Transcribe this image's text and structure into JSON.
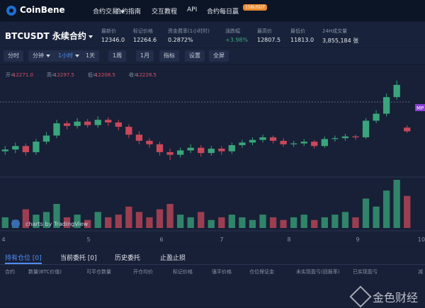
{
  "nav": {
    "logo": "CoinBene",
    "items": [
      "合约交易",
      "合约指南",
      "交互教程",
      "API",
      "合约每日赢"
    ],
    "badge": "15BUSDT"
  },
  "ticker": {
    "symbol": "BTCUSDT 永续合约",
    "stats": [
      {
        "label": "最新价",
        "value": "12346.0"
      },
      {
        "label": "标记价格",
        "value": "12264.6"
      },
      {
        "label": "资金费率(1小时时)",
        "value": "0.2872%"
      },
      {
        "label": "涨跌幅",
        "value": "+3.98%"
      },
      {
        "label": "最高价",
        "value": "12807.5"
      },
      {
        "label": "最低价",
        "value": "11813.0"
      },
      {
        "label": "24H成交量",
        "value": "3,855,184 张"
      }
    ]
  },
  "toolbar": [
    "分时",
    "分钟",
    "1小时",
    "1天",
    "1周",
    "1月",
    "指标",
    "设置",
    "全屏"
  ],
  "chart_data": {
    "type": "candlestick",
    "legend": [
      {
        "label": "开=",
        "value": "12271.0"
      },
      {
        "label": "高=",
        "value": "12297.5"
      },
      {
        "label": "低=",
        "value": "12208.5"
      },
      {
        "label": "收=",
        "value": "12228.5"
      }
    ],
    "x_labels": [
      "4",
      "5",
      "6",
      "7",
      "8",
      "9",
      "10"
    ],
    "open": [
      12000,
      12020,
      12060,
      11990,
      12110,
      12180,
      12320,
      12290,
      12340,
      12300,
      12360,
      12330,
      12280,
      12190,
      12120,
      12080,
      11990,
      11960,
      12010,
      12040,
      11980,
      12030,
      12000,
      12070,
      12100,
      12130,
      12160,
      12120,
      12080,
      12090,
      12110,
      12060,
      12140,
      12150,
      12170,
      12160,
      12350,
      12430,
      12620,
      12271
    ],
    "high": [
      12060,
      12100,
      12090,
      12140,
      12220,
      12360,
      12350,
      12380,
      12370,
      12400,
      12390,
      12360,
      12310,
      12230,
      12150,
      12110,
      12030,
      12040,
      12080,
      12070,
      12060,
      12060,
      12100,
      12130,
      12160,
      12190,
      12180,
      12150,
      12120,
      12140,
      12130,
      12170,
      12180,
      12200,
      12190,
      12380,
      12470,
      12660,
      12807.5,
      12297.5
    ],
    "low": [
      11960,
      11980,
      11950,
      11960,
      12080,
      12150,
      12250,
      12260,
      12270,
      12270,
      12290,
      12240,
      12150,
      12080,
      12040,
      11950,
      11900,
      11930,
      11980,
      11940,
      11950,
      11960,
      11970,
      12040,
      12070,
      12100,
      12090,
      12050,
      12050,
      12060,
      12030,
      12040,
      12110,
      12120,
      12130,
      12140,
      12320,
      12400,
      12590,
      12208.5
    ],
    "close": [
      12020,
      12060,
      11990,
      12110,
      12180,
      12320,
      12290,
      12340,
      12300,
      12360,
      12330,
      12280,
      12190,
      12120,
      12080,
      11990,
      11960,
      12010,
      12040,
      11980,
      12030,
      12000,
      12070,
      12100,
      12130,
      12160,
      12120,
      12080,
      12090,
      12110,
      12060,
      12140,
      12150,
      12170,
      12160,
      12350,
      12430,
      12620,
      12760,
      12228.5
    ],
    "volume": [
      20,
      15,
      35,
      25,
      30,
      45,
      20,
      25,
      15,
      30,
      20,
      25,
      40,
      30,
      20,
      35,
      45,
      25,
      20,
      30,
      15,
      20,
      25,
      20,
      15,
      25,
      20,
      15,
      20,
      25,
      15,
      20,
      25,
      30,
      20,
      55,
      40,
      70,
      90,
      60
    ],
    "up_color": "#3aa57c",
    "down_color": "#c9485b",
    "watermark": "charts by TradingView",
    "price_badge": "MP"
  },
  "positions": {
    "tabs": [
      "持有仓位 [0]",
      "当前委托 [0]",
      "历史委托",
      "止盈止损"
    ],
    "columns": [
      "合约",
      "数量(BTC价值)",
      "可平仓数量",
      "开仓均价",
      "标记价格",
      "强平价格",
      "仓位保证金",
      "未实现盈亏(回报率)",
      "已实现盈亏",
      "减"
    ]
  },
  "footer_watermark": "金色财经"
}
